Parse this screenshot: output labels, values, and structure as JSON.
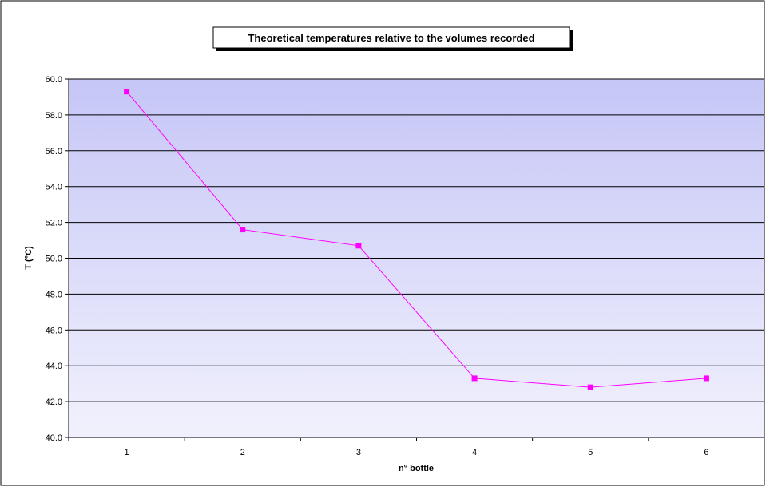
{
  "chart_data": {
    "type": "line",
    "title": "Theoretical temperatures relative to the volumes recorded",
    "xlabel": "n° bottle",
    "ylabel": "T (°C)",
    "categories": [
      "1",
      "2",
      "3",
      "4",
      "5",
      "6"
    ],
    "series": [
      {
        "values": [
          59.3,
          51.6,
          50.7,
          43.3,
          42.8,
          43.3
        ],
        "color": "#ff00ff"
      }
    ],
    "ylim": [
      40.0,
      60.0
    ],
    "yticks": [
      "40.0",
      "42.0",
      "44.0",
      "46.0",
      "48.0",
      "50.0",
      "52.0",
      "54.0",
      "56.0",
      "58.0",
      "60.0"
    ],
    "grid": true,
    "legend": "none",
    "colors": {
      "plot_gradient_top": "#c6c6f7",
      "plot_gradient_bottom": "#f1f1fd",
      "gridline": "#000000",
      "series_line": "#ff00ff",
      "marker": "#ff00ff"
    }
  }
}
